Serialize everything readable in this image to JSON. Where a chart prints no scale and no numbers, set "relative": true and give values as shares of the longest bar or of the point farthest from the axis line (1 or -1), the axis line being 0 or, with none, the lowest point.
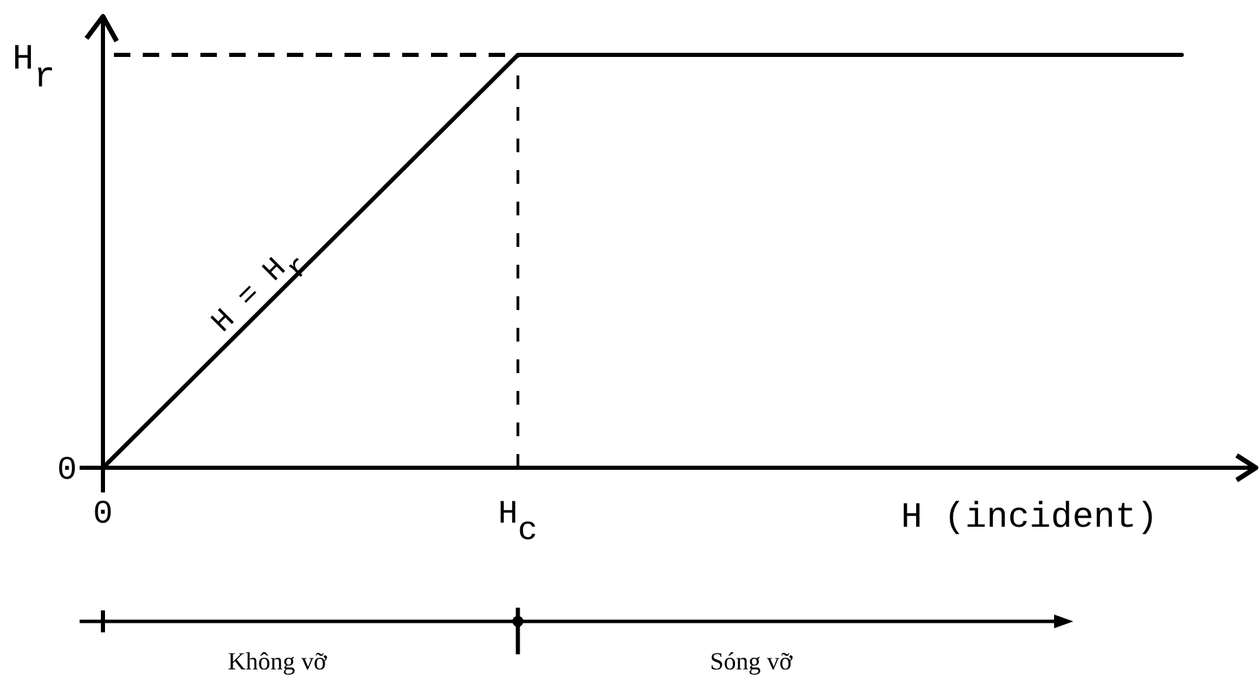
{
  "chart_data": {
    "type": "line",
    "xlabel": "H (incident)",
    "ylabel": "H$_{r}$",
    "categories": [
      "0",
      null,
      null,
      null,
      null,
      "H$_{c}$",
      null,
      null,
      null,
      null,
      null,
      null,
      null,
      null
    ],
    "series": [
      {
        "color": "#000000",
        "values": [
          0,
          0.2,
          0.4,
          0.6,
          0.8,
          1,
          1,
          1,
          1,
          1,
          1,
          1,
          1,
          1
        ]
      }
    ],
    "relative": true,
    "ref_lines": [
      {
        "axis": "y",
        "value": 1,
        "color": "#000000",
        "line_style": "dashed"
      },
      {
        "axis": "x",
        "value": "H$_{c}$",
        "color": "#000000",
        "line_style": "dashed"
      }
    ],
    "annotations": [
      {
        "text": "0",
        "x": "0",
        "y": 0
      },
      {
        "text": "H = H$_{r}$",
        "y": 0.4
      },
      "Không vỡ",
      "Sóng vỡ"
    ]
  }
}
